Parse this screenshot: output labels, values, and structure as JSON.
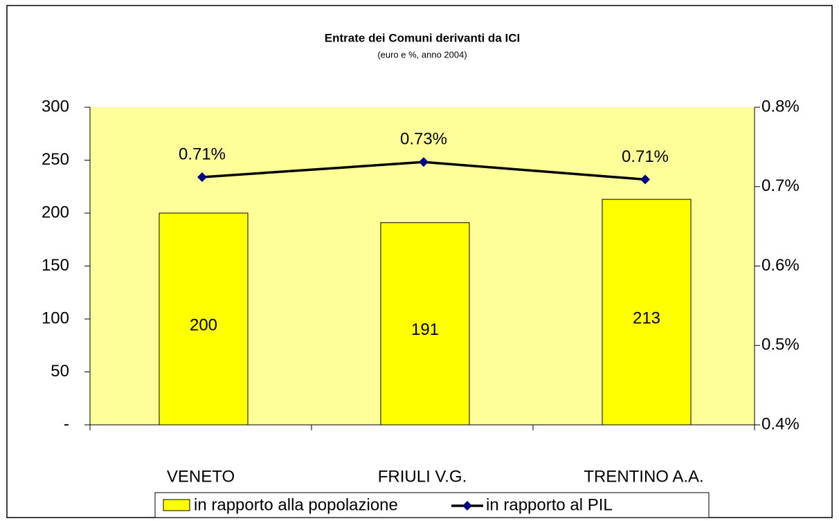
{
  "chart_data": {
    "type": "bar",
    "title": "Entrate dei Comuni derivanti da ICI",
    "subtitle": "(euro e %, anno 2004)",
    "categories": [
      "VENETO",
      "FRIULI V.G.",
      "TRENTINO A.A."
    ],
    "series": [
      {
        "name": "in rapporto alla popolazione",
        "type": "bar",
        "color": "#ffff00",
        "values": [
          200,
          191,
          213
        ]
      },
      {
        "name": "in rapporto al PIL",
        "type": "line",
        "axis": "y2",
        "color": "#000000",
        "marker_color": "#000080",
        "values": [
          0.712,
          0.731,
          0.709
        ],
        "value_labels": [
          "0.71%",
          "0.73%",
          "0.71%"
        ]
      }
    ],
    "ylim": [
      0,
      300
    ],
    "yticks": [
      {
        "value": 0,
        "label": "-"
      },
      50,
      100,
      150,
      200,
      250,
      300
    ],
    "y2lim": [
      0.4,
      0.8
    ],
    "y2ticks": [
      {
        "value": 0.4,
        "label": "0.4%"
      },
      {
        "value": 0.5,
        "label": "0.5%"
      },
      {
        "value": 0.6,
        "label": "0.6%"
      },
      {
        "value": 0.7,
        "label": "0.7%"
      },
      {
        "value": 0.8,
        "label": "0.8%"
      }
    ],
    "plot_background": "#ffff99",
    "legend": "bottom"
  }
}
